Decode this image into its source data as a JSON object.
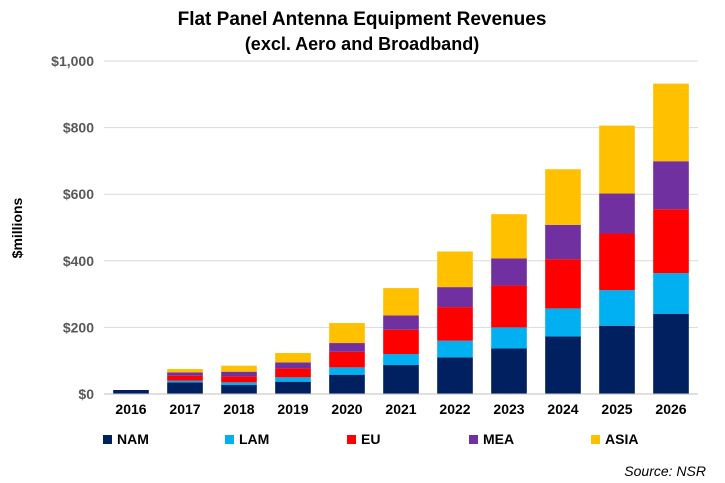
{
  "chart_data": {
    "type": "bar",
    "stacked": true,
    "title": "Flat Panel Antenna Equipment Revenues",
    "subtitle": "(excl. Aero and Broadband)",
    "xlabel": "",
    "ylabel": "$millions",
    "ylim": [
      0,
      1000
    ],
    "yticks": [
      "$0",
      "$200",
      "$400",
      "$600",
      "$800",
      "$1,000"
    ],
    "ytick_values": [
      0,
      200,
      400,
      600,
      800,
      1000
    ],
    "grid": true,
    "legend_position": "bottom",
    "categories": [
      "2016",
      "2017",
      "2018",
      "2019",
      "2020",
      "2021",
      "2022",
      "2023",
      "2024",
      "2025",
      "2026"
    ],
    "series": [
      {
        "name": "NAM",
        "color": "#002060",
        "values": [
          12,
          35,
          27,
          37,
          58,
          87,
          110,
          137,
          173,
          205,
          241
        ]
      },
      {
        "name": "LAM",
        "color": "#00b0f0",
        "values": [
          0,
          5,
          8,
          13,
          22,
          33,
          50,
          63,
          84,
          107,
          122
        ]
      },
      {
        "name": "EU",
        "color": "#ff0000",
        "values": [
          0,
          15,
          18,
          27,
          47,
          73,
          101,
          126,
          148,
          170,
          192
        ]
      },
      {
        "name": "MEA",
        "color": "#7030a0",
        "values": [
          0,
          10,
          14,
          18,
          26,
          43,
          60,
          81,
          103,
          120,
          144
        ]
      },
      {
        "name": "ASIA",
        "color": "#ffc000",
        "values": [
          0,
          10,
          18,
          28,
          60,
          82,
          107,
          133,
          167,
          204,
          233
        ]
      }
    ],
    "source": "Source: NSR"
  }
}
